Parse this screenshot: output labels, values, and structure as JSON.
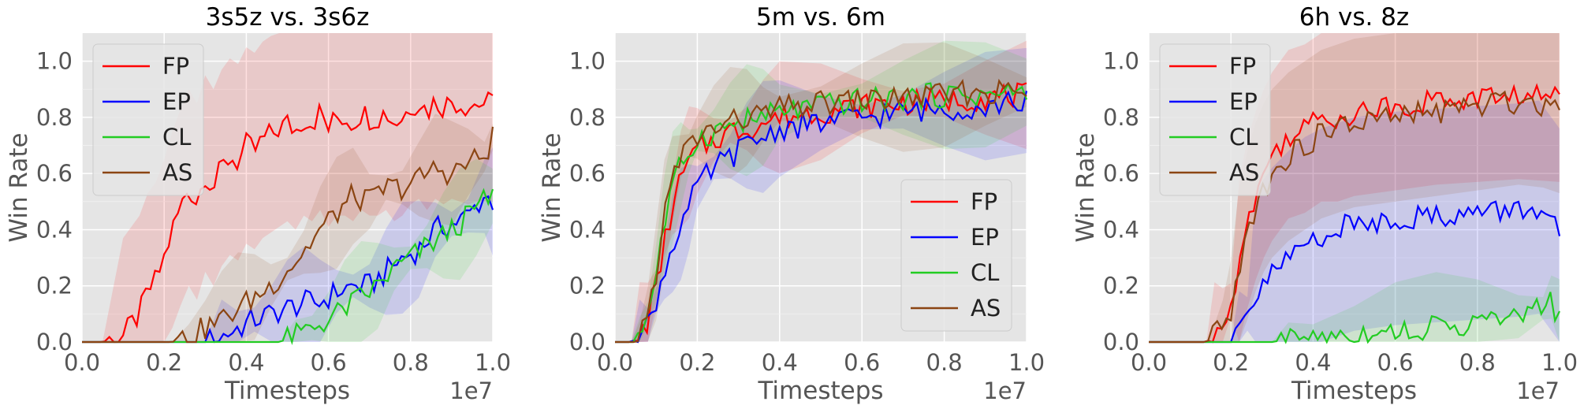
{
  "chart_data": [
    {
      "type": "line",
      "title": "3s5z vs. 3s6z",
      "xlabel": "Timesteps",
      "ylabel": "Win Rate",
      "x_offset_label": "1e7",
      "xlim": [
        0,
        1.0
      ],
      "ylim": [
        0,
        1.1
      ],
      "xticks": [
        "0.0",
        "0.2",
        "0.4",
        "0.6",
        "0.8",
        "1.0"
      ],
      "yticks": [
        "0.0",
        "0.2",
        "0.4",
        "0.6",
        "0.8",
        "1.0"
      ],
      "grid": true,
      "legend_position": "upper-left",
      "series": [
        {
          "name": "FP",
          "color": "#ff0000",
          "band_lower": [
            0,
            0,
            0,
            0,
            0.1,
            0.2,
            0.35,
            0.45,
            0.55,
            0.62,
            0.68,
            0.72
          ],
          "band_upper": [
            0,
            0.02,
            0.25,
            0.6,
            1.1,
            1.1,
            1.1,
            1.1,
            1.1,
            1.1,
            1.1,
            1.1
          ],
          "x": [
            0.0,
            0.05,
            0.1,
            0.12,
            0.14,
            0.16,
            0.18,
            0.2,
            0.22,
            0.24,
            0.26,
            0.28,
            0.3,
            0.32,
            0.34,
            0.36,
            0.38,
            0.4,
            0.42,
            0.44,
            0.46,
            0.48,
            0.5,
            0.52,
            0.54,
            0.56,
            0.58,
            0.6,
            0.62,
            0.64,
            0.66,
            0.68,
            0.7,
            0.72,
            0.74,
            0.76,
            0.78,
            0.8,
            0.82,
            0.84,
            0.86,
            0.88,
            0.9,
            0.92,
            0.94,
            0.96,
            0.98,
            1.0
          ],
          "values": [
            0.0,
            0.0,
            0.02,
            0.06,
            0.1,
            0.18,
            0.22,
            0.3,
            0.4,
            0.48,
            0.55,
            0.5,
            0.6,
            0.55,
            0.62,
            0.66,
            0.64,
            0.7,
            0.68,
            0.72,
            0.74,
            0.76,
            0.78,
            0.75,
            0.8,
            0.78,
            0.82,
            0.76,
            0.8,
            0.8,
            0.78,
            0.82,
            0.8,
            0.8,
            0.82,
            0.78,
            0.8,
            0.84,
            0.86,
            0.82,
            0.86,
            0.84,
            0.86,
            0.85,
            0.84,
            0.85,
            0.85,
            0.85
          ]
        },
        {
          "name": "EP",
          "color": "#0000ff",
          "x": [
            0.0,
            0.3,
            0.34,
            0.38,
            0.42,
            0.46,
            0.5,
            0.54,
            0.58,
            0.62,
            0.66,
            0.7,
            0.74,
            0.78,
            0.82,
            0.86,
            0.9,
            0.94,
            0.98,
            1.0
          ],
          "values": [
            0.0,
            0.0,
            0.02,
            0.05,
            0.08,
            0.1,
            0.12,
            0.14,
            0.14,
            0.18,
            0.2,
            0.2,
            0.25,
            0.3,
            0.33,
            0.4,
            0.42,
            0.45,
            0.52,
            0.5
          ]
        },
        {
          "name": "CL",
          "color": "#22cc22",
          "x": [
            0.0,
            0.48,
            0.52,
            0.56,
            0.6,
            0.64,
            0.68,
            0.72,
            0.76,
            0.8,
            0.84,
            0.88,
            0.92,
            0.96,
            1.0
          ],
          "values": [
            0.0,
            0.0,
            0.02,
            0.05,
            0.08,
            0.12,
            0.16,
            0.2,
            0.26,
            0.3,
            0.34,
            0.38,
            0.42,
            0.48,
            0.52
          ]
        },
        {
          "name": "AS",
          "color": "#8b4513",
          "x": [
            0.0,
            0.22,
            0.26,
            0.3,
            0.34,
            0.38,
            0.42,
            0.46,
            0.5,
            0.54,
            0.58,
            0.62,
            0.66,
            0.7,
            0.74,
            0.78,
            0.82,
            0.86,
            0.9,
            0.94,
            0.98,
            1.0
          ],
          "values": [
            0.0,
            0.0,
            0.02,
            0.05,
            0.08,
            0.12,
            0.16,
            0.2,
            0.26,
            0.32,
            0.4,
            0.46,
            0.52,
            0.5,
            0.55,
            0.55,
            0.58,
            0.62,
            0.6,
            0.64,
            0.66,
            0.73
          ]
        }
      ]
    },
    {
      "type": "line",
      "title": "5m vs. 6m",
      "xlabel": "Timesteps",
      "ylabel": "Win Rate",
      "x_offset_label": "1e7",
      "xlim": [
        0,
        1.0
      ],
      "ylim": [
        0,
        1.1
      ],
      "xticks": [
        "0.0",
        "0.2",
        "0.4",
        "0.6",
        "0.8",
        "1.0"
      ],
      "yticks": [
        "0.0",
        "0.2",
        "0.4",
        "0.6",
        "0.8",
        "1.0"
      ],
      "grid": true,
      "legend_position": "lower-right",
      "series": [
        {
          "name": "FP",
          "color": "#ff0000",
          "x": [
            0.0,
            0.04,
            0.06,
            0.08,
            0.1,
            0.12,
            0.14,
            0.16,
            0.18,
            0.2,
            0.24,
            0.28,
            0.32,
            0.36,
            0.4,
            0.5,
            0.6,
            0.7,
            0.8,
            0.9,
            1.0
          ],
          "values": [
            0.0,
            0.0,
            0.02,
            0.08,
            0.2,
            0.35,
            0.48,
            0.58,
            0.64,
            0.68,
            0.72,
            0.75,
            0.76,
            0.78,
            0.8,
            0.82,
            0.84,
            0.85,
            0.86,
            0.87,
            0.88
          ]
        },
        {
          "name": "EP",
          "color": "#0000ff",
          "x": [
            0.0,
            0.04,
            0.06,
            0.08,
            0.1,
            0.12,
            0.14,
            0.16,
            0.18,
            0.2,
            0.24,
            0.28,
            0.32,
            0.36,
            0.4,
            0.5,
            0.6,
            0.7,
            0.8,
            0.9,
            1.0
          ],
          "values": [
            0.0,
            0.0,
            0.02,
            0.06,
            0.15,
            0.25,
            0.35,
            0.42,
            0.48,
            0.55,
            0.62,
            0.66,
            0.7,
            0.73,
            0.76,
            0.78,
            0.8,
            0.82,
            0.83,
            0.84,
            0.86
          ]
        },
        {
          "name": "CL",
          "color": "#22cc22",
          "x": [
            0.0,
            0.04,
            0.06,
            0.08,
            0.1,
            0.12,
            0.14,
            0.16,
            0.18,
            0.2,
            0.24,
            0.28,
            0.32,
            0.36,
            0.4,
            0.5,
            0.6,
            0.7,
            0.8,
            0.9,
            1.0
          ],
          "values": [
            0.0,
            0.0,
            0.03,
            0.1,
            0.25,
            0.42,
            0.55,
            0.63,
            0.68,
            0.72,
            0.75,
            0.77,
            0.79,
            0.8,
            0.82,
            0.84,
            0.86,
            0.87,
            0.88,
            0.88,
            0.89
          ]
        },
        {
          "name": "AS",
          "color": "#8b4513",
          "x": [
            0.0,
            0.04,
            0.06,
            0.08,
            0.1,
            0.12,
            0.14,
            0.16,
            0.18,
            0.2,
            0.24,
            0.28,
            0.32,
            0.36,
            0.4,
            0.5,
            0.6,
            0.7,
            0.8,
            0.9,
            1.0
          ],
          "values": [
            0.0,
            0.0,
            0.03,
            0.1,
            0.25,
            0.45,
            0.58,
            0.66,
            0.7,
            0.73,
            0.76,
            0.78,
            0.8,
            0.81,
            0.83,
            0.85,
            0.86,
            0.87,
            0.88,
            0.89,
            0.89
          ]
        }
      ]
    },
    {
      "type": "line",
      "title": "6h vs. 8z",
      "xlabel": "Timesteps",
      "ylabel": "Win Rate",
      "x_offset_label": "1e7",
      "xlim": [
        0,
        1.0
      ],
      "ylim": [
        0,
        1.1
      ],
      "xticks": [
        "0.0",
        "0.2",
        "0.4",
        "0.6",
        "0.8",
        "1.0"
      ],
      "yticks": [
        "0.0",
        "0.2",
        "0.4",
        "0.6",
        "0.8",
        "1.0"
      ],
      "grid": true,
      "legend_position": "upper-left",
      "series": [
        {
          "name": "FP",
          "color": "#ff0000",
          "x": [
            0.0,
            0.14,
            0.16,
            0.18,
            0.2,
            0.22,
            0.24,
            0.26,
            0.28,
            0.3,
            0.32,
            0.34,
            0.38,
            0.42,
            0.46,
            0.5,
            0.6,
            0.7,
            0.8,
            0.9,
            1.0
          ],
          "values": [
            0.0,
            0.0,
            0.02,
            0.06,
            0.15,
            0.28,
            0.42,
            0.52,
            0.6,
            0.66,
            0.7,
            0.74,
            0.76,
            0.8,
            0.8,
            0.82,
            0.84,
            0.86,
            0.87,
            0.88,
            0.87
          ]
        },
        {
          "name": "EP",
          "color": "#0000ff",
          "x": [
            0.0,
            0.2,
            0.22,
            0.24,
            0.26,
            0.28,
            0.3,
            0.34,
            0.38,
            0.42,
            0.46,
            0.5,
            0.6,
            0.7,
            0.8,
            0.9,
            0.95,
            1.0
          ],
          "values": [
            0.0,
            0.0,
            0.05,
            0.1,
            0.15,
            0.2,
            0.24,
            0.3,
            0.35,
            0.38,
            0.4,
            0.42,
            0.44,
            0.45,
            0.46,
            0.47,
            0.48,
            0.38
          ]
        },
        {
          "name": "CL",
          "color": "#22cc22",
          "x": [
            0.0,
            0.3,
            0.34,
            0.4,
            0.5,
            0.6,
            0.7,
            0.8,
            0.9,
            0.96,
            0.98,
            1.0
          ],
          "values": [
            0.0,
            0.0,
            0.01,
            0.02,
            0.03,
            0.04,
            0.05,
            0.07,
            0.09,
            0.12,
            0.16,
            0.07
          ]
        },
        {
          "name": "AS",
          "color": "#8b4513",
          "x": [
            0.0,
            0.14,
            0.16,
            0.18,
            0.2,
            0.22,
            0.24,
            0.26,
            0.28,
            0.3,
            0.34,
            0.38,
            0.42,
            0.46,
            0.5,
            0.6,
            0.7,
            0.8,
            0.9,
            0.96,
            1.0
          ],
          "values": [
            0.0,
            0.0,
            0.02,
            0.05,
            0.12,
            0.25,
            0.38,
            0.48,
            0.55,
            0.6,
            0.66,
            0.7,
            0.74,
            0.76,
            0.78,
            0.8,
            0.82,
            0.84,
            0.86,
            0.85,
            0.83
          ]
        }
      ]
    }
  ]
}
